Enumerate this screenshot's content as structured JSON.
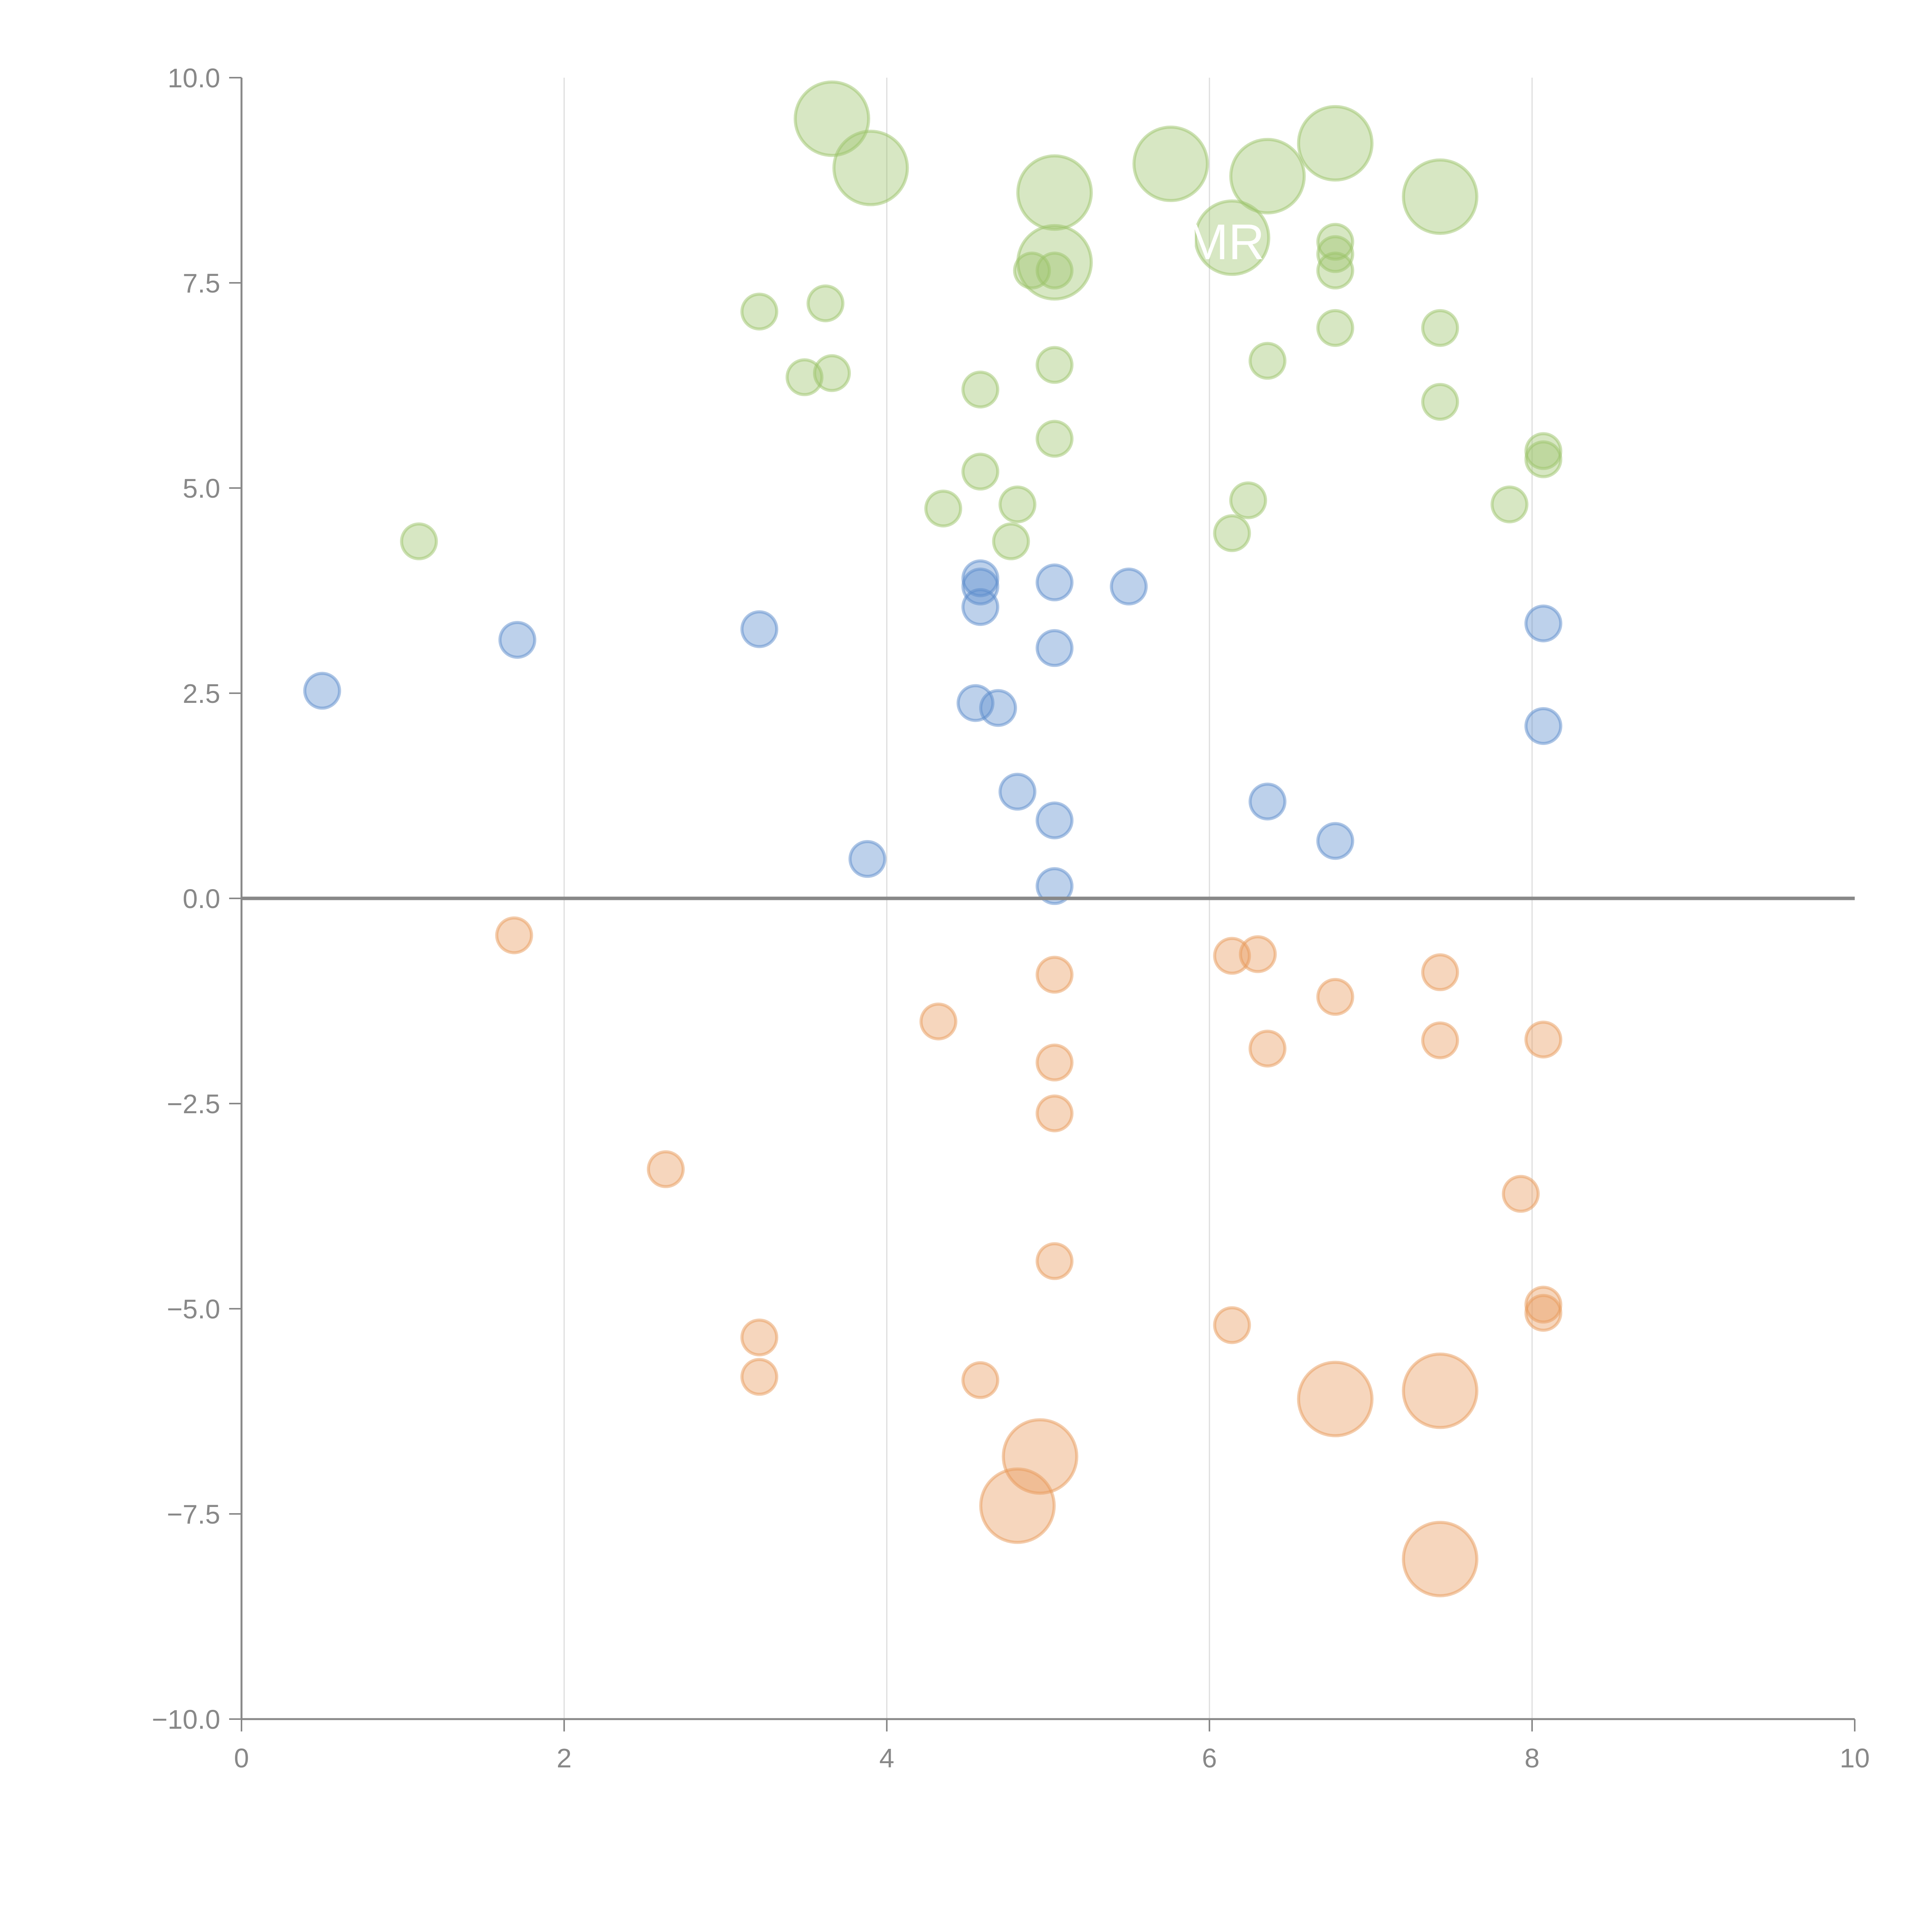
{
  "chart_data": {
    "type": "scatter",
    "title": "",
    "xlabel": "",
    "ylabel": "",
    "xlim": [
      0,
      10
    ],
    "ylim": [
      -10,
      10
    ],
    "x_ticks": [
      "0",
      "2",
      "4",
      "6",
      "8",
      "10"
    ],
    "x_tick_values": [
      0,
      2,
      4,
      6,
      8,
      10
    ],
    "y_ticks": [
      "10.0",
      "7.5",
      "5.0",
      "2.5",
      "0.0",
      "−2.5",
      "−5.0",
      "−7.5",
      "−10.0"
    ],
    "y_tick_values": [
      10,
      7.5,
      5,
      2.5,
      0,
      -2.5,
      -5,
      -7.5,
      -10
    ],
    "vertical_gridlines_at": [
      2,
      4,
      6,
      8
    ],
    "zero_line": true,
    "colors": {
      "green": "#9cc46a",
      "blue": "#5b8bcc",
      "orange": "#e8995a",
      "axis": "#888888",
      "grid": "#dddddd"
    },
    "annotations": [
      {
        "text": "MR",
        "x": 6.1,
        "y": 8.0
      }
    ],
    "series": [
      {
        "name": "green",
        "color": "#9cc46a",
        "points": [
          {
            "x": 3.66,
            "y": 9.5,
            "size": "large"
          },
          {
            "x": 3.9,
            "y": 8.9,
            "size": "large"
          },
          {
            "x": 5.04,
            "y": 8.6,
            "size": "large"
          },
          {
            "x": 5.76,
            "y": 8.95,
            "size": "large"
          },
          {
            "x": 6.36,
            "y": 8.8,
            "size": "large"
          },
          {
            "x": 6.78,
            "y": 9.2,
            "size": "large"
          },
          {
            "x": 7.43,
            "y": 8.55,
            "size": "large"
          },
          {
            "x": 6.14,
            "y": 8.05,
            "size": "large"
          },
          {
            "x": 5.04,
            "y": 7.75,
            "size": "large"
          },
          {
            "x": 4.9,
            "y": 7.65,
            "size": "small"
          },
          {
            "x": 5.04,
            "y": 7.65,
            "size": "small"
          },
          {
            "x": 6.78,
            "y": 8.0,
            "size": "small"
          },
          {
            "x": 6.78,
            "y": 7.85,
            "size": "small"
          },
          {
            "x": 6.78,
            "y": 7.65,
            "size": "small"
          },
          {
            "x": 3.21,
            "y": 7.15,
            "size": "small"
          },
          {
            "x": 3.62,
            "y": 7.25,
            "size": "small"
          },
          {
            "x": 3.49,
            "y": 6.35,
            "size": "small"
          },
          {
            "x": 3.66,
            "y": 6.4,
            "size": "small"
          },
          {
            "x": 4.58,
            "y": 6.2,
            "size": "small"
          },
          {
            "x": 5.04,
            "y": 6.5,
            "size": "small"
          },
          {
            "x": 6.36,
            "y": 6.55,
            "size": "small"
          },
          {
            "x": 6.78,
            "y": 6.95,
            "size": "small"
          },
          {
            "x": 7.43,
            "y": 6.95,
            "size": "small"
          },
          {
            "x": 7.43,
            "y": 6.05,
            "size": "small"
          },
          {
            "x": 5.04,
            "y": 5.6,
            "size": "small"
          },
          {
            "x": 4.58,
            "y": 5.2,
            "size": "small"
          },
          {
            "x": 4.35,
            "y": 4.75,
            "size": "small"
          },
          {
            "x": 4.81,
            "y": 4.8,
            "size": "small"
          },
          {
            "x": 4.77,
            "y": 4.35,
            "size": "small"
          },
          {
            "x": 6.14,
            "y": 4.45,
            "size": "small"
          },
          {
            "x": 6.24,
            "y": 4.85,
            "size": "small"
          },
          {
            "x": 7.86,
            "y": 4.8,
            "size": "small"
          },
          {
            "x": 8.07,
            "y": 5.45,
            "size": "small"
          },
          {
            "x": 8.07,
            "y": 5.35,
            "size": "small"
          },
          {
            "x": 1.1,
            "y": 4.35,
            "size": "small"
          }
        ]
      },
      {
        "name": "blue",
        "color": "#5b8bcc",
        "points": [
          {
            "x": 0.5,
            "y": 2.53,
            "size": "small"
          },
          {
            "x": 1.71,
            "y": 3.15,
            "size": "small"
          },
          {
            "x": 3.21,
            "y": 3.28,
            "size": "small"
          },
          {
            "x": 4.58,
            "y": 3.9,
            "size": "small"
          },
          {
            "x": 4.58,
            "y": 3.8,
            "size": "small"
          },
          {
            "x": 4.58,
            "y": 3.55,
            "size": "small"
          },
          {
            "x": 5.04,
            "y": 3.85,
            "size": "small"
          },
          {
            "x": 5.5,
            "y": 3.8,
            "size": "small"
          },
          {
            "x": 5.04,
            "y": 3.05,
            "size": "small"
          },
          {
            "x": 4.55,
            "y": 2.38,
            "size": "small"
          },
          {
            "x": 4.69,
            "y": 2.32,
            "size": "small"
          },
          {
            "x": 4.81,
            "y": 1.3,
            "size": "small"
          },
          {
            "x": 5.04,
            "y": 0.95,
            "size": "small"
          },
          {
            "x": 3.88,
            "y": 0.48,
            "size": "small"
          },
          {
            "x": 5.04,
            "y": 0.15,
            "size": "small"
          },
          {
            "x": 6.36,
            "y": 1.18,
            "size": "small"
          },
          {
            "x": 6.78,
            "y": 0.7,
            "size": "small"
          },
          {
            "x": 8.07,
            "y": 3.35,
            "size": "small"
          },
          {
            "x": 8.07,
            "y": 2.1,
            "size": "small"
          }
        ]
      },
      {
        "name": "orange",
        "color": "#e8995a",
        "points": [
          {
            "x": 1.69,
            "y": -0.45,
            "size": "small"
          },
          {
            "x": 5.04,
            "y": -0.93,
            "size": "small"
          },
          {
            "x": 4.32,
            "y": -1.5,
            "size": "small"
          },
          {
            "x": 6.14,
            "y": -0.7,
            "size": "small"
          },
          {
            "x": 6.3,
            "y": -0.68,
            "size": "small"
          },
          {
            "x": 6.78,
            "y": -1.2,
            "size": "small"
          },
          {
            "x": 7.43,
            "y": -0.9,
            "size": "small"
          },
          {
            "x": 6.36,
            "y": -1.83,
            "size": "small"
          },
          {
            "x": 7.43,
            "y": -1.73,
            "size": "small"
          },
          {
            "x": 8.07,
            "y": -1.72,
            "size": "small"
          },
          {
            "x": 5.04,
            "y": -2.0,
            "size": "small"
          },
          {
            "x": 5.04,
            "y": -2.62,
            "size": "small"
          },
          {
            "x": 2.63,
            "y": -3.3,
            "size": "small"
          },
          {
            "x": 7.93,
            "y": -3.6,
            "size": "small"
          },
          {
            "x": 5.04,
            "y": -4.42,
            "size": "small"
          },
          {
            "x": 8.07,
            "y": -4.95,
            "size": "small"
          },
          {
            "x": 8.07,
            "y": -5.05,
            "size": "small"
          },
          {
            "x": 6.14,
            "y": -5.2,
            "size": "small"
          },
          {
            "x": 3.21,
            "y": -5.35,
            "size": "small"
          },
          {
            "x": 3.21,
            "y": -5.83,
            "size": "small"
          },
          {
            "x": 4.58,
            "y": -5.87,
            "size": "small"
          },
          {
            "x": 6.78,
            "y": -6.1,
            "size": "large"
          },
          {
            "x": 7.43,
            "y": -6.0,
            "size": "large"
          },
          {
            "x": 4.95,
            "y": -6.8,
            "size": "large"
          },
          {
            "x": 4.81,
            "y": -7.4,
            "size": "large"
          },
          {
            "x": 7.43,
            "y": -8.05,
            "size": "large"
          }
        ]
      }
    ]
  }
}
